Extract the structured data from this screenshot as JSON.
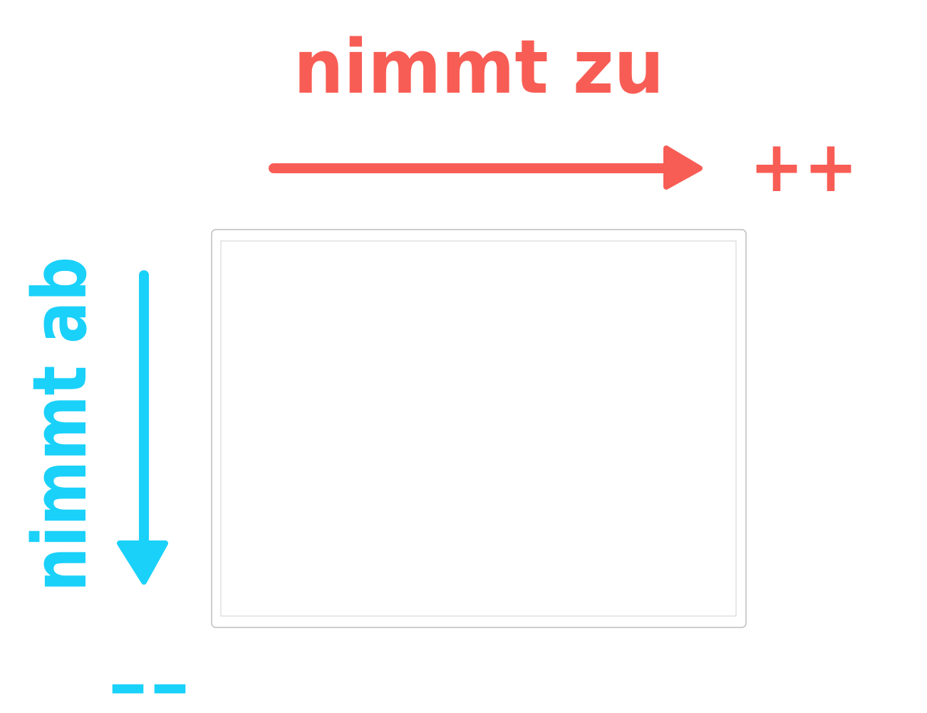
{
  "labels": {
    "top_label": "nimmt zu",
    "top_sign": "++",
    "left_label": "nimmt ab",
    "bottom_sign": "--"
  },
  "colors": {
    "increase": "#f85d55",
    "decrease": "#1ad1fa",
    "frame_outer": "#bdbdbd",
    "frame_inner": "#d2d2d2",
    "background": "#ffffff"
  }
}
